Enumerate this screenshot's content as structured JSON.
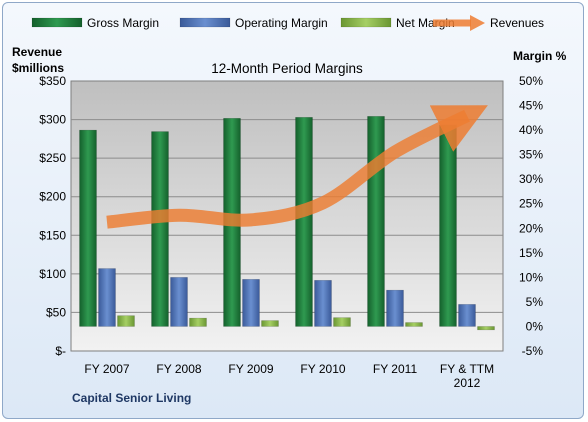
{
  "company": "Capital Senior Living",
  "chart_data": {
    "type": "bar",
    "title": "12-Month Period Margins",
    "categories": [
      "FY 2007",
      "FY 2008",
      "FY 2009",
      "FY 2010",
      "FY 2011",
      "FY & TTM 2012"
    ],
    "y_left": {
      "label_line1": "Revenue",
      "label_line2": "$millions",
      "ticks": [
        "$-",
        "$50",
        "$100",
        "$150",
        "$200",
        "$250",
        "$300",
        "$350"
      ],
      "range": [
        0,
        350
      ]
    },
    "y_right": {
      "label": "Margin %",
      "ticks": [
        "-5%",
        "0%",
        "5%",
        "10%",
        "15%",
        "20%",
        "25%",
        "30%",
        "35%",
        "40%",
        "45%",
        "50%"
      ],
      "range": [
        -5,
        50
      ]
    },
    "series": [
      {
        "name": "Gross Margin",
        "type": "bar",
        "axis": "right",
        "color": "#1f7a3c",
        "values": [
          40.0,
          39.7,
          42.4,
          42.6,
          42.8,
          41.0
        ]
      },
      {
        "name": "Operating Margin",
        "type": "bar",
        "axis": "right",
        "color": "#4f73b8",
        "values": [
          11.8,
          10.0,
          9.6,
          9.4,
          7.4,
          4.5
        ]
      },
      {
        "name": "Net Margin",
        "type": "bar",
        "axis": "right",
        "color": "#8ab548",
        "values": [
          2.2,
          1.7,
          1.2,
          1.8,
          0.8,
          -0.7
        ]
      },
      {
        "name": "Revenues",
        "type": "line",
        "axis": "left",
        "color": "#ed7d31",
        "values": [
          167,
          176,
          170,
          192,
          258,
          305
        ]
      }
    ],
    "grid": true,
    "legend": "top"
  }
}
